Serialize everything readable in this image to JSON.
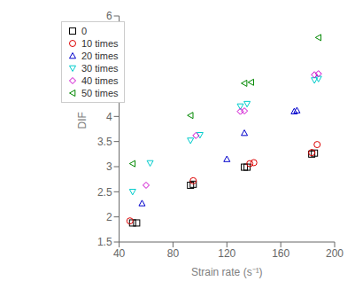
{
  "chart_data": {
    "type": "scatter",
    "xlabel": "Strain rate (s⁻¹)",
    "ylabel": "DIF",
    "xlim": [
      40,
      200
    ],
    "ylim": [
      1.5,
      6.0
    ],
    "xticks": [
      40,
      80,
      120,
      160,
      200
    ],
    "yticks": [
      1.5,
      2.0,
      2.5,
      3.0,
      3.5,
      4.0,
      4.5,
      5.0,
      5.5,
      6.0
    ],
    "grid": false,
    "legend": "upper left",
    "series": [
      {
        "name": "0",
        "color": "#000000",
        "marker": "square",
        "x": [
          50,
          53,
          93,
          95,
          133,
          135,
          183,
          185
        ],
        "values": [
          1.88,
          1.88,
          2.63,
          2.65,
          2.99,
          2.99,
          3.25,
          3.27
        ]
      },
      {
        "name": "10 times",
        "color": "#dd0000",
        "marker": "circle",
        "x": [
          48,
          95,
          137,
          140,
          183,
          187
        ],
        "values": [
          1.92,
          2.72,
          3.06,
          3.08,
          3.28,
          3.44
        ]
      },
      {
        "name": "20 times",
        "color": "#0000cc",
        "marker": "triangle_up",
        "x": [
          57,
          120,
          133,
          170,
          172
        ],
        "values": [
          2.27,
          3.15,
          3.67,
          4.1,
          4.12
        ]
      },
      {
        "name": "30 times",
        "color": "#00cccc",
        "marker": "triangle_down",
        "x": [
          50,
          63,
          93,
          100,
          130,
          135,
          185,
          188
        ],
        "values": [
          2.5,
          3.07,
          3.52,
          3.63,
          4.2,
          4.25,
          4.72,
          4.75
        ]
      },
      {
        "name": "40 times",
        "color": "#cc00cc",
        "marker": "diamond",
        "x": [
          60,
          97,
          130,
          133,
          185,
          188
        ],
        "values": [
          2.63,
          3.62,
          4.1,
          4.11,
          4.83,
          4.85
        ]
      },
      {
        "name": "50 times",
        "color": "#008800",
        "marker": "triangle_left",
        "x": [
          50,
          93,
          133,
          138,
          188
        ],
        "values": [
          3.06,
          4.02,
          4.66,
          4.68,
          5.57
        ]
      }
    ]
  }
}
